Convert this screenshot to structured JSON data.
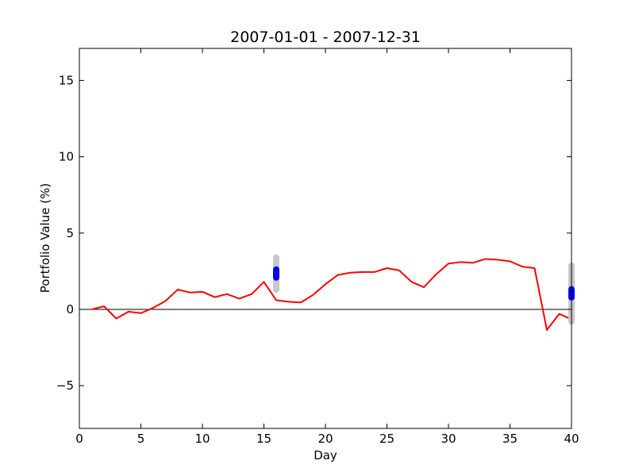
{
  "chart_data": {
    "type": "line",
    "title": "2007-01-01 - 2007-12-31",
    "xlabel": "Day",
    "ylabel": "Portfolio Value (%)",
    "xlim": [
      0,
      40
    ],
    "ylim": [
      -7.8,
      17.1
    ],
    "xticks": [
      0,
      5,
      10,
      15,
      20,
      25,
      30,
      35,
      40
    ],
    "yticks": [
      -5,
      0,
      5,
      10,
      15
    ],
    "ytick_labels": [
      "−5",
      "0",
      "5",
      "10",
      "15"
    ],
    "grid": false,
    "zero_line": 0,
    "series": [
      {
        "color": "#ff0000",
        "x": [
          1,
          2,
          3,
          4,
          5,
          6,
          7,
          8,
          9,
          10,
          11,
          12,
          13,
          14,
          15,
          16,
          17,
          18,
          19,
          20,
          21,
          22,
          23,
          24,
          25,
          26,
          27,
          28,
          29,
          30,
          31,
          32,
          33,
          34,
          35,
          36,
          37,
          38,
          39,
          40
        ],
        "y": [
          0.0,
          0.2,
          -0.6,
          -0.15,
          -0.25,
          0.1,
          0.55,
          1.3,
          1.1,
          1.15,
          0.8,
          1.0,
          0.7,
          1.0,
          1.8,
          0.6,
          0.5,
          0.45,
          0.95,
          1.65,
          2.25,
          2.4,
          2.45,
          2.45,
          2.7,
          2.55,
          1.8,
          1.45,
          2.3,
          3.0,
          3.1,
          3.05,
          3.3,
          3.25,
          3.15,
          2.8,
          2.7,
          -1.35,
          -0.3,
          -0.65
        ]
      }
    ],
    "markers": [
      {
        "x": 16,
        "y": 2.35,
        "range": [
          1.3,
          3.4
        ],
        "color": "#0000ff",
        "range_color": "#c8c8c8"
      },
      {
        "x": 40,
        "y": 1.05,
        "range": [
          -0.8,
          2.85
        ],
        "color": "#0000ff",
        "range_color": "#c8c8c8"
      }
    ]
  }
}
